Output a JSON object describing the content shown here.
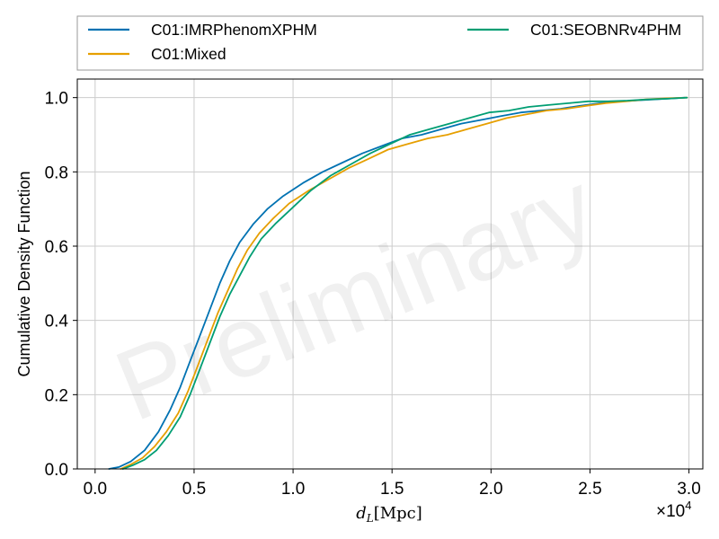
{
  "chart_data": {
    "type": "line",
    "title": "",
    "xlabel_italic": "d",
    "xlabel_sub": "L",
    "xlabel_units": "[Mpc]",
    "ylabel": "Cumulative Density Function",
    "xlim": [
      -900,
      30700
    ],
    "ylim": [
      0,
      1.05
    ],
    "x_ticks": [
      0,
      5000,
      10000,
      15000,
      20000,
      25000,
      30000
    ],
    "x_tick_labels": [
      "0.0",
      "0.5",
      "1.0",
      "1.5",
      "2.0",
      "2.5",
      "3.0"
    ],
    "x_offset_label": "×10",
    "x_offset_exp": "4",
    "y_ticks": [
      0,
      0.2,
      0.4,
      0.6,
      0.8,
      1.0
    ],
    "y_tick_labels": [
      "0.0",
      "0.2",
      "0.4",
      "0.6",
      "0.8",
      "1.0"
    ],
    "grid": true,
    "legend_position": "top, above plot",
    "watermark": "Preliminary",
    "series": [
      {
        "name": "C01:IMRPhenomXPHM",
        "color": "#0072b2",
        "x": [
          700,
          1200,
          1800,
          2500,
          3200,
          3800,
          4300,
          4800,
          5300,
          5800,
          6300,
          6800,
          7300,
          8000,
          8700,
          9500,
          10500,
          11500,
          12500,
          13500,
          14500,
          15500,
          16500,
          17500,
          18500,
          19500,
          20500,
          21500,
          22500,
          23500,
          24500,
          25500,
          26500,
          27500,
          28500,
          29800
        ],
        "y": [
          0.0,
          0.005,
          0.02,
          0.05,
          0.1,
          0.16,
          0.22,
          0.29,
          0.36,
          0.43,
          0.5,
          0.56,
          0.61,
          0.66,
          0.7,
          0.735,
          0.77,
          0.8,
          0.825,
          0.85,
          0.87,
          0.89,
          0.9,
          0.915,
          0.93,
          0.94,
          0.95,
          0.96,
          0.965,
          0.97,
          0.978,
          0.985,
          0.99,
          0.993,
          0.996,
          1.0
        ]
      },
      {
        "name": "C01:Mixed",
        "color": "#e69f00",
        "x": [
          1300,
          1800,
          2400,
          3000,
          3600,
          4200,
          4700,
          5200,
          5700,
          6200,
          6700,
          7200,
          7700,
          8300,
          9000,
          9800,
          10800,
          11800,
          12800,
          13800,
          14800,
          15800,
          16800,
          17800,
          18800,
          19800,
          20800,
          21800,
          22800,
          23800,
          24800,
          25800,
          26800,
          27800,
          28800,
          29900
        ],
        "y": [
          0.0,
          0.012,
          0.03,
          0.06,
          0.1,
          0.15,
          0.21,
          0.28,
          0.35,
          0.42,
          0.48,
          0.54,
          0.59,
          0.635,
          0.675,
          0.715,
          0.75,
          0.78,
          0.81,
          0.835,
          0.86,
          0.875,
          0.89,
          0.9,
          0.915,
          0.93,
          0.945,
          0.955,
          0.965,
          0.97,
          0.978,
          0.985,
          0.99,
          0.995,
          0.998,
          1.0
        ]
      },
      {
        "name": "C01:SEOBNRv4PHM",
        "color": "#009e73",
        "x": [
          1400,
          1900,
          2500,
          3100,
          3700,
          4300,
          4800,
          5300,
          5800,
          6300,
          6800,
          7300,
          7800,
          8400,
          9100,
          9900,
          10900,
          11900,
          12900,
          13900,
          14900,
          15900,
          16900,
          17900,
          18900,
          19900,
          20900,
          21900,
          22900,
          23900,
          24900,
          25900,
          26900,
          27900,
          28900,
          29900
        ],
        "y": [
          0.0,
          0.01,
          0.025,
          0.05,
          0.09,
          0.14,
          0.2,
          0.27,
          0.34,
          0.41,
          0.47,
          0.52,
          0.57,
          0.62,
          0.66,
          0.7,
          0.75,
          0.79,
          0.82,
          0.85,
          0.875,
          0.9,
          0.915,
          0.93,
          0.945,
          0.96,
          0.965,
          0.975,
          0.98,
          0.985,
          0.99,
          0.99,
          0.992,
          0.995,
          0.997,
          1.0
        ]
      }
    ]
  }
}
